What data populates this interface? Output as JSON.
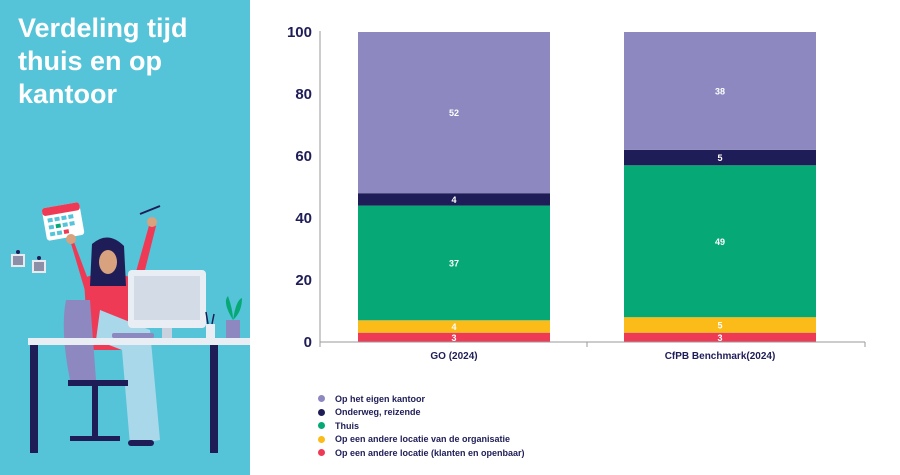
{
  "panel": {
    "title": "Verdeling tijd thuis en op kantoor",
    "background": "#55c3d8"
  },
  "chart_data": {
    "type": "bar",
    "stacked": true,
    "categories": [
      "GO (2024)",
      "CfPB Benchmark(2024)"
    ],
    "ylim": [
      0,
      100
    ],
    "yticks": [
      "0",
      "20",
      "40",
      "60",
      "80",
      "100"
    ],
    "grid": false,
    "legend_position": "bottom-left",
    "series": [
      {
        "name": "Op een andere locatie (klanten en openbaar)",
        "color": "#ef3a56",
        "values": [
          3,
          3
        ]
      },
      {
        "name": "Op een andere locatie van de organisatie",
        "color": "#fbbb18",
        "values": [
          4,
          5
        ]
      },
      {
        "name": "Thuis",
        "color": "#06a975",
        "values": [
          37,
          49
        ]
      },
      {
        "name": "Onderweg, reizende",
        "color": "#1f1d57",
        "values": [
          4,
          5
        ]
      },
      {
        "name": "Op het eigen kantoor",
        "color": "#8d88bf",
        "values": [
          52,
          38
        ]
      }
    ],
    "legend_order": [
      "Op het eigen kantoor",
      "Onderweg, reizende",
      "Thuis",
      "Op een andere locatie van de organisatie",
      "Op een andere locatie (klanten en openbaar)"
    ]
  }
}
